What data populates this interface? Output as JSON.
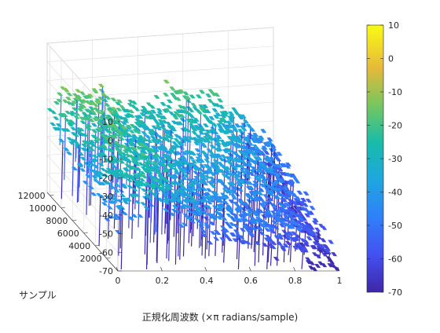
{
  "chart_data": {
    "type": "surface3d",
    "title": "",
    "xlabel": "正規化周波数 (×π radians/sample)",
    "ylabel": "サンプル",
    "zlabel": "",
    "xlim": [
      0,
      1
    ],
    "ylim": [
      0,
      12500
    ],
    "zlim": [
      -70,
      10
    ],
    "x_ticks": [
      "0",
      "0.2",
      "0.4",
      "0.6",
      "0.8",
      "1"
    ],
    "y_ticks": [
      "2000",
      "4000",
      "6000",
      "8000",
      "10000",
      "12000"
    ],
    "z_ticks": [
      "10",
      "0",
      "-10",
      "-20",
      "-30",
      "-40",
      "-50",
      "-60",
      "-70"
    ],
    "grid": true,
    "colormap": "parula",
    "colorbar": {
      "position": "right",
      "limits": [
        -70,
        10
      ],
      "ticks": [
        "10",
        "0",
        "-10",
        "-20",
        "-30",
        "-40",
        "-50",
        "-60",
        "-70"
      ]
    },
    "surface_profile": {
      "x": [
        0.0,
        0.05,
        0.1,
        0.15,
        0.2,
        0.25,
        0.3,
        0.35,
        0.4,
        0.45,
        0.5,
        0.55,
        0.6,
        0.65,
        0.7,
        0.75,
        0.8,
        0.85,
        0.9,
        0.95,
        1.0
      ],
      "peak_z_front": [
        -45,
        -40,
        -33,
        -30,
        -32,
        -34,
        -38,
        -42,
        -44,
        -48,
        -50,
        -52,
        -50,
        -55,
        -55,
        -58,
        -55,
        -60,
        -62,
        -65,
        -68
      ],
      "peak_z_back": [
        -28,
        -22,
        -20,
        -19,
        -21,
        -24,
        -27,
        -28,
        -28,
        -30,
        -26,
        -22,
        -24,
        -25,
        -25,
        -30,
        -35,
        -40,
        -45,
        -50,
        -55
      ]
    }
  }
}
